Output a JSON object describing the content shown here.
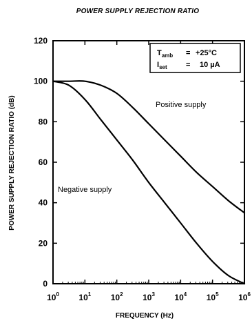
{
  "chart_data": {
    "type": "line",
    "title": "POWER SUPPLY  REJECTION RATIO",
    "ylabel": "POWER SUPPLY  REJECTION RATIO (dB)",
    "xlabel": "FREQUENCY (Hz)",
    "x_scale": "log",
    "xlim": [
      1,
      1000000
    ],
    "ylim": [
      0,
      120
    ],
    "yticks": [
      0,
      20,
      40,
      60,
      80,
      100,
      120
    ],
    "xticks": [
      {
        "value": 1,
        "base": "10",
        "exp": "0"
      },
      {
        "value": 10,
        "base": "10",
        "exp": "1"
      },
      {
        "value": 100,
        "base": "10",
        "exp": "2"
      },
      {
        "value": 1000,
        "base": "10",
        "exp": "3"
      },
      {
        "value": 10000,
        "base": "10",
        "exp": "4"
      },
      {
        "value": 100000,
        "base": "10",
        "exp": "5"
      },
      {
        "value": 1000000,
        "base": "10",
        "exp": "6"
      }
    ],
    "grid": false,
    "legend_placement": "top-right",
    "conditions": [
      {
        "symbol": "T",
        "sub": "amb",
        "rel": "=",
        "value": "+25°C"
      },
      {
        "symbol": "I",
        "sub": "set",
        "rel": "=",
        "value": "10 µA"
      }
    ],
    "series": [
      {
        "name": "Positive supply",
        "x": [
          1,
          3.16,
          10,
          31.6,
          100,
          316,
          1000,
          3160,
          10000,
          31600,
          100000,
          316000,
          1000000
        ],
        "values": [
          100,
          100,
          100,
          98,
          94,
          87,
          79,
          71,
          63,
          55,
          48,
          41,
          35
        ]
      },
      {
        "name": "Negative supply",
        "x": [
          1,
          3.16,
          10,
          31.6,
          100,
          316,
          1000,
          3160,
          10000,
          31600,
          100000,
          316000,
          1000000
        ],
        "values": [
          100,
          98,
          91,
          81,
          71,
          61,
          50,
          40,
          30,
          20,
          11,
          4,
          0
        ]
      }
    ]
  }
}
